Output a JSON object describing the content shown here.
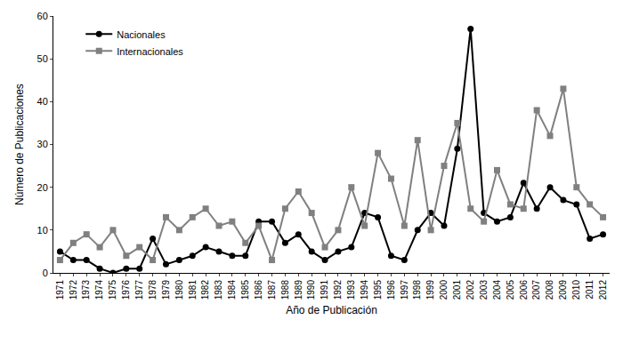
{
  "chart_data": {
    "type": "line",
    "x_label": "Año de Publicación",
    "y_label": "Número de Publicaciones",
    "categories": [
      "1971",
      "1972",
      "1973",
      "1974",
      "1975",
      "1976",
      "1977",
      "1978",
      "1979",
      "1980",
      "1981",
      "1982",
      "1983",
      "1984",
      "1985",
      "1986",
      "1987",
      "1988",
      "1989",
      "1990",
      "1991",
      "1992",
      "1993",
      "1994",
      "1995",
      "1996",
      "1997",
      "1998",
      "1999",
      "2000",
      "2001",
      "2002",
      "2003",
      "2004",
      "2005",
      "2006",
      "2007",
      "2008",
      "2009",
      "2010",
      "2011",
      "2012"
    ],
    "series": [
      {
        "name": "Nacionales",
        "color": "#000000",
        "marker": "circle",
        "values": [
          5,
          3,
          3,
          1,
          0,
          1,
          1,
          8,
          2,
          3,
          4,
          6,
          5,
          4,
          4,
          12,
          12,
          7,
          9,
          5,
          3,
          5,
          6,
          14,
          13,
          4,
          3,
          10,
          14,
          11,
          29,
          57,
          14,
          12,
          13,
          21,
          15,
          20,
          17,
          16,
          8,
          9
        ]
      },
      {
        "name": "Internacionales",
        "color": "#808080",
        "marker": "square",
        "values": [
          3,
          7,
          9,
          6,
          10,
          4,
          6,
          3,
          13,
          10,
          13,
          15,
          11,
          12,
          7,
          11,
          3,
          15,
          19,
          14,
          6,
          10,
          20,
          11,
          28,
          22,
          11,
          31,
          10,
          25,
          35,
          15,
          12,
          24,
          16,
          15,
          38,
          32,
          43,
          20,
          16,
          13
        ]
      }
    ],
    "ylim": [
      0,
      60
    ],
    "yticks": [
      0,
      10,
      20,
      30,
      40,
      50,
      60
    ],
    "grid": false,
    "legend": "top-left"
  }
}
